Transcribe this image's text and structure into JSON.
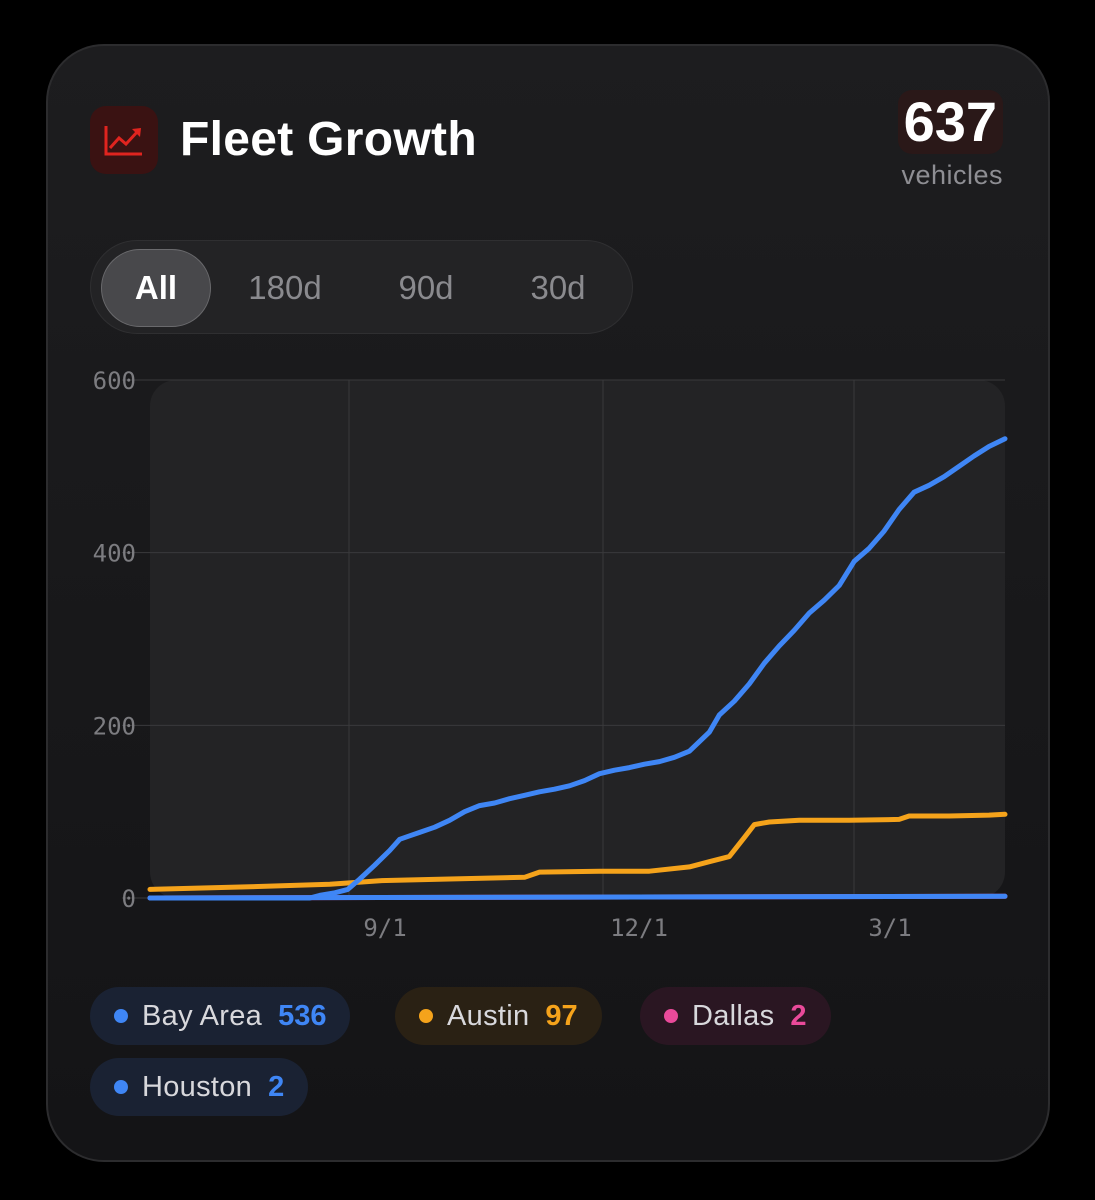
{
  "header": {
    "title": "Fleet Growth",
    "icon": "trend-up-chart-icon",
    "total_value": "637",
    "total_unit": "vehicles"
  },
  "range_tabs": [
    {
      "label": "All",
      "active": true
    },
    {
      "label": "180d",
      "active": false
    },
    {
      "label": "90d",
      "active": false
    },
    {
      "label": "30d",
      "active": false
    }
  ],
  "chart_data": {
    "type": "line",
    "y_ticks": [
      "0",
      "200",
      "400",
      "600"
    ],
    "x_ticks": [
      "9/1",
      "12/1",
      "3/1"
    ],
    "ylim": [
      0,
      600
    ],
    "grid": true,
    "series": [
      {
        "name": "Bay Area",
        "color": "#3f86f5",
        "points": [
          [
            0,
            0
          ],
          [
            160,
            0
          ],
          [
            170,
            3
          ],
          [
            185,
            6
          ],
          [
            198,
            10
          ],
          [
            210,
            22
          ],
          [
            225,
            38
          ],
          [
            240,
            55
          ],
          [
            250,
            68
          ],
          [
            260,
            72
          ],
          [
            270,
            76
          ],
          [
            285,
            82
          ],
          [
            300,
            90
          ],
          [
            315,
            100
          ],
          [
            330,
            107
          ],
          [
            345,
            110
          ],
          [
            360,
            115
          ],
          [
            375,
            119
          ],
          [
            390,
            123
          ],
          [
            405,
            126
          ],
          [
            420,
            130
          ],
          [
            435,
            136
          ],
          [
            450,
            144
          ],
          [
            465,
            148
          ],
          [
            480,
            151
          ],
          [
            495,
            155
          ],
          [
            510,
            158
          ],
          [
            525,
            163
          ],
          [
            540,
            170
          ],
          [
            560,
            192
          ],
          [
            570,
            212
          ],
          [
            585,
            228
          ],
          [
            600,
            248
          ],
          [
            615,
            272
          ],
          [
            630,
            292
          ],
          [
            645,
            310
          ],
          [
            660,
            330
          ],
          [
            675,
            345
          ],
          [
            690,
            362
          ],
          [
            705,
            390
          ],
          [
            720,
            405
          ],
          [
            735,
            425
          ],
          [
            750,
            450
          ],
          [
            765,
            470
          ],
          [
            780,
            478
          ],
          [
            795,
            488
          ],
          [
            810,
            500
          ],
          [
            825,
            512
          ],
          [
            840,
            523
          ],
          [
            856,
            532
          ]
        ]
      },
      {
        "name": "Austin",
        "color": "#f5a31b",
        "points": [
          [
            0,
            10
          ],
          [
            100,
            13
          ],
          [
            180,
            16
          ],
          [
            230,
            20
          ],
          [
            300,
            22
          ],
          [
            375,
            24
          ],
          [
            390,
            30
          ],
          [
            450,
            31
          ],
          [
            500,
            31
          ],
          [
            540,
            36
          ],
          [
            560,
            42
          ],
          [
            580,
            48
          ],
          [
            595,
            70
          ],
          [
            605,
            85
          ],
          [
            620,
            88
          ],
          [
            650,
            90
          ],
          [
            700,
            90
          ],
          [
            750,
            91
          ],
          [
            760,
            95
          ],
          [
            800,
            95
          ],
          [
            840,
            96
          ],
          [
            856,
            97
          ]
        ]
      },
      {
        "name": "Dallas",
        "color": "#e94a9a",
        "points": [
          [
            0,
            0
          ],
          [
            856,
            2
          ]
        ]
      },
      {
        "name": "Houston",
        "color": "#3f86f5",
        "points": [
          [
            0,
            0
          ],
          [
            856,
            2
          ]
        ]
      }
    ]
  },
  "legend": [
    {
      "name": "Bay Area",
      "value": "536",
      "color": "#3f86f5",
      "bg": "#1a2233"
    },
    {
      "name": "Austin",
      "value": "97",
      "color": "#f5a31b",
      "bg": "#2a2114"
    },
    {
      "name": "Dallas",
      "value": "2",
      "color": "#e94a9a",
      "bg": "#2a1622"
    },
    {
      "name": "Houston",
      "value": "2",
      "color": "#3f86f5",
      "bg": "#1a2233"
    }
  ]
}
